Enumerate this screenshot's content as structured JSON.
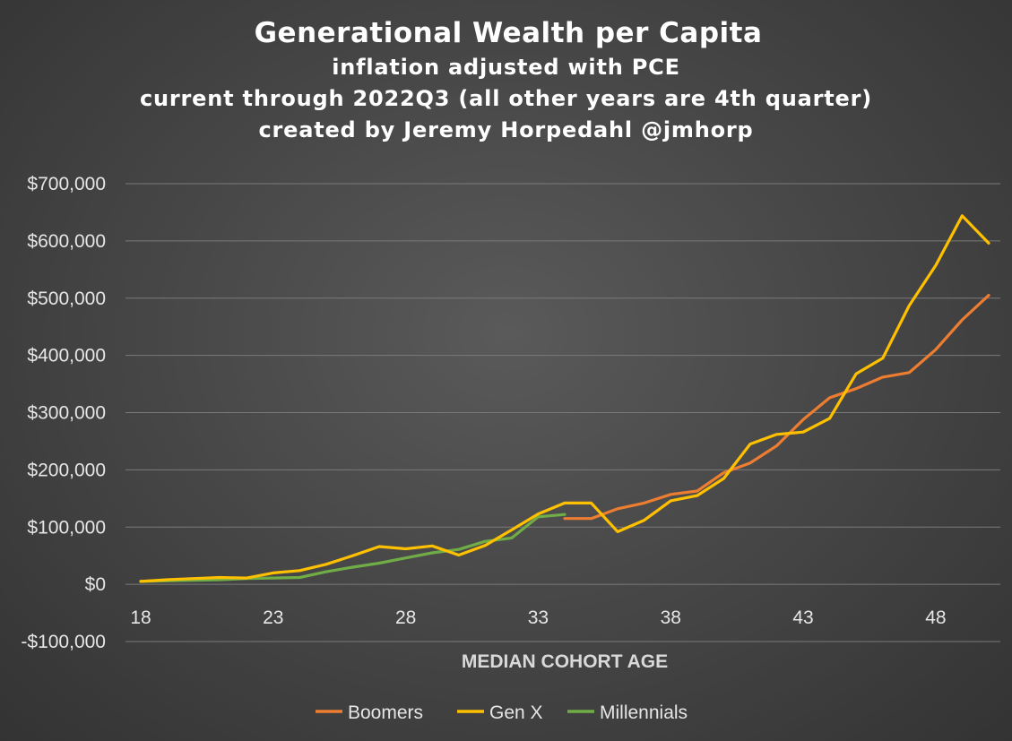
{
  "titles": {
    "title": "Generational Wealth per Capita",
    "subtitle_1": "inflation adjusted with PCE",
    "subtitle_2": "current through 2022Q3 (all other years are 4th quarter)",
    "subtitle_3": "created by Jeremy Horpedahl @jmhorp"
  },
  "colors": {
    "gridline": "#7a7a7a",
    "tick_text": "#e6e6e6"
  },
  "chart_data": {
    "type": "line",
    "title": "Generational Wealth per Capita",
    "subtitle": "inflation adjusted with PCE / current through 2022Q3 (all other years are 4th quarter) / created by Jeremy Horpedahl @jmhorp",
    "xlabel": "MEDIAN COHORT AGE",
    "ylabel": "",
    "xlim": [
      18,
      50
    ],
    "ylim": [
      -100000,
      700000
    ],
    "x_ticks": [
      18,
      23,
      28,
      33,
      38,
      43,
      48
    ],
    "y_ticks": [
      -100000,
      0,
      100000,
      200000,
      300000,
      400000,
      500000,
      600000,
      700000
    ],
    "y_tick_labels": [
      "-$100,000",
      "$0",
      "$100,000",
      "$200,000",
      "$300,000",
      "$400,000",
      "$500,000",
      "$600,000",
      "$700,000"
    ],
    "grid": "horizontal",
    "legend": "bottom",
    "series": [
      {
        "name": "Boomers",
        "color": "#ed7d31",
        "x": [
          34,
          35,
          36,
          37,
          38,
          39,
          40,
          41,
          42,
          43,
          44,
          45,
          46,
          47,
          48,
          49,
          50
        ],
        "y": [
          115000,
          115000,
          132000,
          142000,
          157000,
          163000,
          195000,
          212000,
          242000,
          288000,
          326000,
          342000,
          362000,
          370000,
          410000,
          462000,
          505000
        ]
      },
      {
        "name": "Gen X",
        "color": "#ffc000",
        "x": [
          18,
          19,
          20,
          21,
          22,
          23,
          24,
          25,
          26,
          27,
          28,
          29,
          30,
          31,
          32,
          33,
          34,
          35,
          36,
          37,
          38,
          39,
          40,
          41,
          42,
          43,
          44,
          45,
          46,
          47,
          48,
          49,
          50
        ],
        "y": [
          5000,
          8000,
          10000,
          12000,
          11000,
          20000,
          24000,
          35000,
          50000,
          66000,
          62000,
          67000,
          51000,
          68000,
          95000,
          123000,
          142000,
          142000,
          92000,
          112000,
          146000,
          155000,
          185000,
          245000,
          262000,
          266000,
          290000,
          368000,
          395000,
          487000,
          557000,
          644000,
          596000
        ]
      },
      {
        "name": "Millennials",
        "color": "#70ad47",
        "x": [
          18,
          19,
          20,
          21,
          22,
          23,
          24,
          25,
          26,
          27,
          28,
          29,
          30,
          31,
          32,
          33,
          34
        ],
        "y": [
          5000,
          6000,
          7000,
          8000,
          10000,
          11000,
          12000,
          22000,
          30000,
          37000,
          46000,
          55000,
          61000,
          75000,
          81000,
          118000,
          122000
        ]
      }
    ]
  }
}
